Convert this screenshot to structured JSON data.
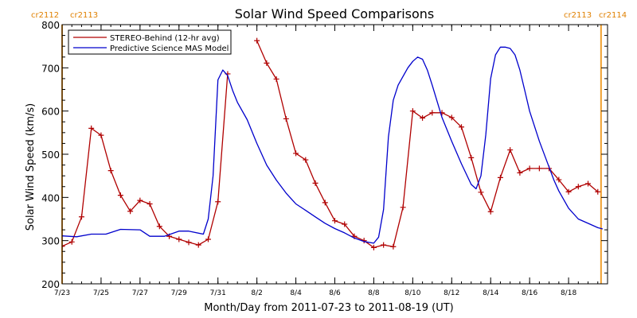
{
  "chart_data": {
    "type": "line",
    "title": "Solar Wind Speed Comparisons",
    "xlabel": "Month/Day from 2011-07-23 to 2011-08-19 (UT)",
    "ylabel": "Solar Wind Speed (km/s)",
    "xlim": [
      "2011-07-23",
      "2011-08-20T00:00"
    ],
    "ylim": [
      200,
      800
    ],
    "grid": false,
    "legend_position": "top-left",
    "y_ticks": [
      200,
      300,
      400,
      500,
      600,
      700,
      800
    ],
    "x_ticks": [
      {
        "date": "2011-07-23",
        "label": "7/23"
      },
      {
        "date": "2011-07-25",
        "label": "7/25"
      },
      {
        "date": "2011-07-27",
        "label": "7/27"
      },
      {
        "date": "2011-07-29",
        "label": "7/29"
      },
      {
        "date": "2011-07-31",
        "label": "7/31"
      },
      {
        "date": "2011-08-02",
        "label": "8/2"
      },
      {
        "date": "2011-08-04",
        "label": "8/4"
      },
      {
        "date": "2011-08-06",
        "label": "8/6"
      },
      {
        "date": "2011-08-08",
        "label": "8/8"
      },
      {
        "date": "2011-08-10",
        "label": "8/10"
      },
      {
        "date": "2011-08-12",
        "label": "8/12"
      },
      {
        "date": "2011-08-14",
        "label": "8/14"
      },
      {
        "date": "2011-08-16",
        "label": "8/16"
      },
      {
        "date": "2011-08-18",
        "label": "8/18"
      }
    ],
    "carrington_markers": [
      {
        "date": "2011-07-23T00:00",
        "color": "#f0a030",
        "label_left": "cr2112",
        "label_right": "cr2113"
      },
      {
        "date": "2011-08-19T16:00",
        "color": "#f0a030",
        "label_left": "cr2113",
        "label_right": "cr2114"
      }
    ],
    "series": [
      {
        "name": "STEREO-Behind (12-hr avg)",
        "color": "#b00000",
        "markers": true,
        "segments": [
          [
            [
              "2011-07-23T00:00",
              287
            ],
            [
              "2011-07-23T12:00",
              297
            ],
            [
              "2011-07-24T00:00",
              355
            ],
            [
              "2011-07-24T12:00",
              560
            ],
            [
              "2011-07-25T00:00",
              544
            ],
            [
              "2011-07-25T12:00",
              462
            ],
            [
              "2011-07-26T00:00",
              405
            ],
            [
              "2011-07-26T12:00",
              368
            ],
            [
              "2011-07-27T00:00",
              393
            ],
            [
              "2011-07-27T12:00",
              385
            ],
            [
              "2011-07-28T00:00",
              333
            ],
            [
              "2011-07-28T12:00",
              310
            ],
            [
              "2011-07-29T00:00",
              303
            ],
            [
              "2011-07-29T12:00",
              296
            ],
            [
              "2011-07-30T00:00",
              290
            ],
            [
              "2011-07-30T12:00",
              303
            ],
            [
              "2011-07-31T00:00",
              390
            ],
            [
              "2011-07-31T12:00",
              686
            ]
          ],
          [
            [
              "2011-08-02T00:00",
              763
            ],
            [
              "2011-08-02T12:00",
              711
            ],
            [
              "2011-08-03T00:00",
              674
            ],
            [
              "2011-08-03T12:00",
              582
            ],
            [
              "2011-08-04T00:00",
              502
            ],
            [
              "2011-08-04T12:00",
              487
            ],
            [
              "2011-08-05T00:00",
              433
            ],
            [
              "2011-08-05T12:00",
              388
            ],
            [
              "2011-08-06T00:00",
              346
            ],
            [
              "2011-08-06T12:00",
              338
            ],
            [
              "2011-08-07T00:00",
              310
            ],
            [
              "2011-08-07T12:00",
              300
            ],
            [
              "2011-08-08T00:00",
              284
            ],
            [
              "2011-08-08T12:00",
              290
            ],
            [
              "2011-08-09T00:00",
              286
            ],
            [
              "2011-08-09T12:00",
              377
            ],
            [
              "2011-08-10T00:00",
              600
            ],
            [
              "2011-08-10T12:00",
              584
            ],
            [
              "2011-08-11T00:00",
              596
            ],
            [
              "2011-08-11T12:00",
              596
            ],
            [
              "2011-08-12T00:00",
              585
            ],
            [
              "2011-08-12T12:00",
              563
            ],
            [
              "2011-08-13T00:00",
              492
            ],
            [
              "2011-08-13T12:00",
              412
            ],
            [
              "2011-08-14T00:00",
              367
            ],
            [
              "2011-08-14T12:00",
              446
            ],
            [
              "2011-08-15T00:00",
              510
            ],
            [
              "2011-08-15T12:00",
              457
            ],
            [
              "2011-08-16T00:00",
              467
            ],
            [
              "2011-08-16T12:00",
              467
            ],
            [
              "2011-08-17T00:00",
              467
            ],
            [
              "2011-08-17T12:00",
              441
            ],
            [
              "2011-08-18T00:00",
              413
            ],
            [
              "2011-08-18T12:00",
              425
            ],
            [
              "2011-08-19T00:00",
              432
            ],
            [
              "2011-08-19T12:00",
              413
            ]
          ]
        ]
      },
      {
        "name": "Predictive Science MAS Model",
        "color": "#0000cc",
        "markers": false,
        "segments": [
          [
            [
              "2011-07-23T00:00",
              311
            ],
            [
              "2011-07-23T18:00",
              309
            ],
            [
              "2011-07-24T12:00",
              315
            ],
            [
              "2011-07-25T06:00",
              315
            ],
            [
              "2011-07-26T00:00",
              326
            ],
            [
              "2011-07-27T00:00",
              325
            ],
            [
              "2011-07-27T12:00",
              310
            ],
            [
              "2011-07-28T06:00",
              310
            ],
            [
              "2011-07-29T00:00",
              322
            ],
            [
              "2011-07-29T12:00",
              322
            ],
            [
              "2011-07-30T06:00",
              315
            ],
            [
              "2011-07-30T12:00",
              350
            ],
            [
              "2011-07-30T18:00",
              450
            ],
            [
              "2011-07-31T00:00",
              672
            ],
            [
              "2011-07-31T06:00",
              695
            ],
            [
              "2011-07-31T12:00",
              682
            ],
            [
              "2011-07-31T18:00",
              648
            ],
            [
              "2011-08-01T00:00",
              620
            ],
            [
              "2011-08-01T12:00",
              580
            ],
            [
              "2011-08-02T00:00",
              525
            ],
            [
              "2011-08-02T12:00",
              475
            ],
            [
              "2011-08-03T00:00",
              440
            ],
            [
              "2011-08-03T12:00",
              410
            ],
            [
              "2011-08-04T00:00",
              385
            ],
            [
              "2011-08-04T12:00",
              370
            ],
            [
              "2011-08-05T00:00",
              355
            ],
            [
              "2011-08-05T12:00",
              340
            ],
            [
              "2011-08-06T00:00",
              328
            ],
            [
              "2011-08-06T12:00",
              318
            ],
            [
              "2011-08-07T00:00",
              306
            ],
            [
              "2011-08-07T12:00",
              298
            ],
            [
              "2011-08-08T00:00",
              294
            ],
            [
              "2011-08-08T06:00",
              308
            ],
            [
              "2011-08-08T12:00",
              372
            ],
            [
              "2011-08-08T18:00",
              540
            ],
            [
              "2011-08-09T00:00",
              625
            ],
            [
              "2011-08-09T06:00",
              660
            ],
            [
              "2011-08-09T12:00",
              680
            ],
            [
              "2011-08-09T18:00",
              700
            ],
            [
              "2011-08-10T00:00",
              715
            ],
            [
              "2011-08-10T06:00",
              725
            ],
            [
              "2011-08-10T12:00",
              720
            ],
            [
              "2011-08-10T18:00",
              695
            ],
            [
              "2011-08-11T00:00",
              660
            ],
            [
              "2011-08-11T12:00",
              585
            ],
            [
              "2011-08-12T00:00",
              530
            ],
            [
              "2011-08-12T12:00",
              478
            ],
            [
              "2011-08-13T00:00",
              430
            ],
            [
              "2011-08-13T06:00",
              420
            ],
            [
              "2011-08-13T12:00",
              450
            ],
            [
              "2011-08-13T18:00",
              545
            ],
            [
              "2011-08-14T00:00",
              675
            ],
            [
              "2011-08-14T06:00",
              730
            ],
            [
              "2011-08-14T12:00",
              748
            ],
            [
              "2011-08-14T18:00",
              748
            ],
            [
              "2011-08-15T00:00",
              745
            ],
            [
              "2011-08-15T06:00",
              730
            ],
            [
              "2011-08-15T12:00",
              695
            ],
            [
              "2011-08-15T18:00",
              648
            ],
            [
              "2011-08-16T00:00",
              600
            ],
            [
              "2011-08-16T12:00",
              530
            ],
            [
              "2011-08-17T00:00",
              470
            ],
            [
              "2011-08-17T06:00",
              440
            ],
            [
              "2011-08-17T12:00",
              415
            ],
            [
              "2011-08-18T00:00",
              375
            ],
            [
              "2011-08-18T12:00",
              350
            ],
            [
              "2011-08-19T00:00",
              340
            ],
            [
              "2011-08-19T12:00",
              330
            ],
            [
              "2011-08-19T18:00",
              327
            ]
          ]
        ]
      }
    ]
  }
}
